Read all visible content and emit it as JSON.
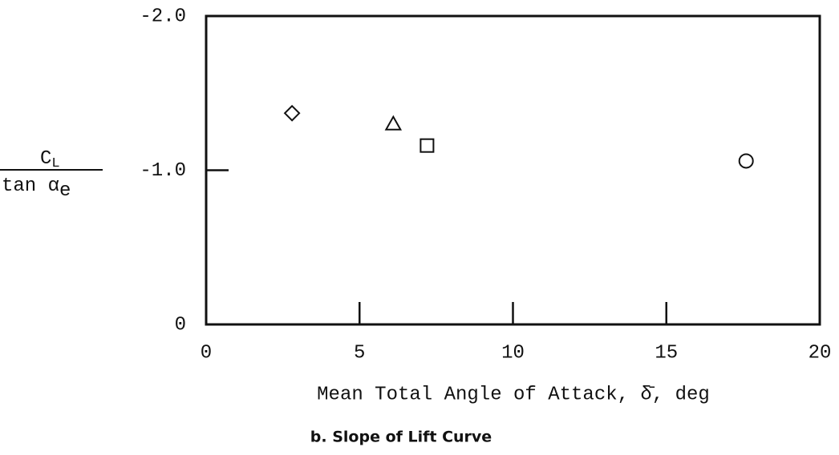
{
  "chart_data": {
    "type": "scatter",
    "ylabel": {
      "numerator": "C",
      "numerator_sub": "L",
      "denominator": "tan α",
      "denominator_sub": "e"
    },
    "xlabel": "Mean Total Angle of Attack, δ̄, deg",
    "caption": "b. Slope of Lift Curve",
    "xlim": [
      0,
      20
    ],
    "xticks": [
      0,
      5,
      10,
      15,
      20
    ],
    "ylim": [
      0,
      -2
    ],
    "yticks": [
      0,
      {
        "value": -1,
        "label": "-1.0"
      },
      {
        "value": -2,
        "label": "-2.0"
      }
    ],
    "color": "#111111",
    "series": [
      {
        "marker": "diamond",
        "x": [
          2.8
        ],
        "values": [
          -1.37
        ]
      },
      {
        "marker": "triangle",
        "x": [
          6.1
        ],
        "values": [
          -1.3
        ]
      },
      {
        "marker": "square",
        "x": [
          7.2
        ],
        "values": [
          -1.16
        ]
      },
      {
        "marker": "circle",
        "x": [
          17.6
        ],
        "values": [
          -1.06
        ]
      }
    ]
  }
}
